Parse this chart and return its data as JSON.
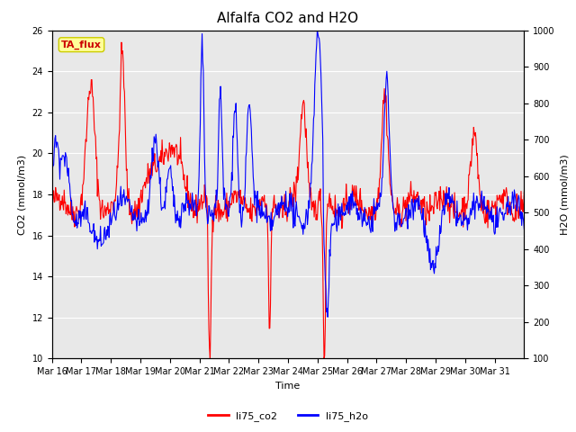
{
  "title": "Alfalfa CO2 and H2O",
  "xlabel": "Time",
  "ylabel_left": "CO2 (mmol/m3)",
  "ylabel_right": "H2O (mmol/m3)",
  "ylim_left": [
    10,
    26
  ],
  "ylim_right": [
    100,
    1000
  ],
  "yticks_left": [
    10,
    12,
    14,
    16,
    18,
    20,
    22,
    24,
    26
  ],
  "yticks_right": [
    100,
    200,
    300,
    400,
    500,
    600,
    700,
    800,
    900,
    1000
  ],
  "xtick_labels": [
    "Mar 16",
    "Mar 17",
    "Mar 18",
    "Mar 19",
    "Mar 20",
    "Mar 21",
    "Mar 22",
    "Mar 23",
    "Mar 24",
    "Mar 25",
    "Mar 26",
    "Mar 27",
    "Mar 28",
    "Mar 29",
    "Mar 30",
    "Mar 31"
  ],
  "annotation_text": "TA_flux",
  "annotation_color": "#cc0000",
  "annotation_bg": "#ffff99",
  "annotation_edge": "#cccc00",
  "legend_labels": [
    "li75_co2",
    "li75_h2o"
  ],
  "line_color_co2": "red",
  "line_color_h2o": "blue",
  "line_width": 0.8,
  "plot_bg": "#e8e8e8",
  "grid_color": "#ffffff",
  "title_fontsize": 11,
  "axis_label_fontsize": 8,
  "tick_fontsize": 7,
  "legend_fontsize": 8,
  "annot_fontsize": 8
}
